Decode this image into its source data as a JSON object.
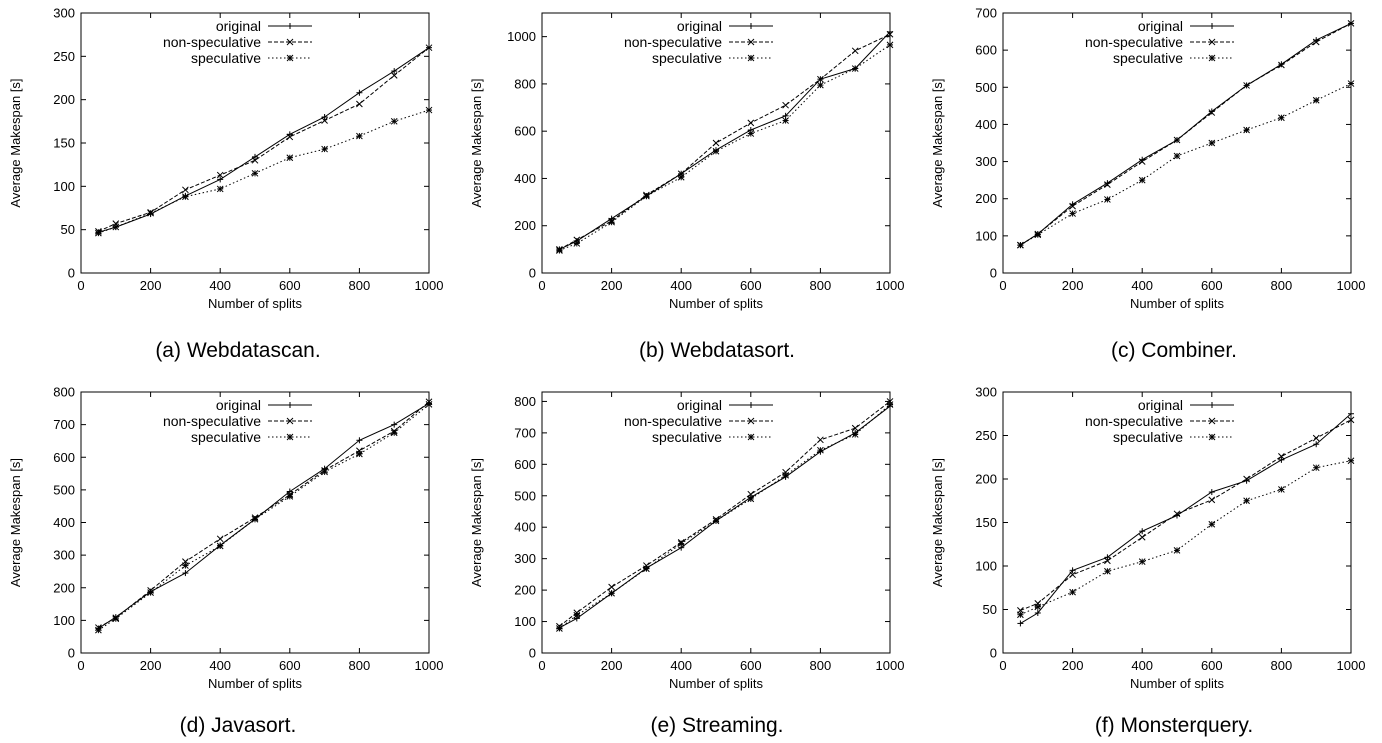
{
  "chart_data": [
    {
      "type": "line",
      "caption": "(a) Webdatascan.",
      "xlabel": "Number of splits",
      "ylabel": "Average Makespan [s]",
      "xlim": [
        0,
        1000
      ],
      "ylim": [
        0,
        300
      ],
      "xticks": [
        0,
        200,
        400,
        600,
        800,
        1000
      ],
      "yticks": [
        0,
        50,
        100,
        150,
        200,
        250,
        300
      ],
      "legend_position": "top-left",
      "x": [
        50,
        100,
        200,
        300,
        400,
        500,
        600,
        700,
        800,
        900,
        1000
      ],
      "series": [
        {
          "name": "original",
          "values": [
            47,
            53,
            68,
            89,
            108,
            134,
            160,
            180,
            208,
            233,
            260
          ]
        },
        {
          "name": "non-speculative",
          "values": [
            48,
            57,
            70,
            96,
            113,
            130,
            157,
            176,
            195,
            228,
            260
          ]
        },
        {
          "name": "speculative",
          "values": [
            46,
            53,
            69,
            88,
            97,
            115,
            133,
            143,
            158,
            175,
            188
          ]
        }
      ]
    },
    {
      "type": "line",
      "caption": "(b) Webdatasort.",
      "xlabel": "Number of splits",
      "ylabel": "Average Makespan [s]",
      "xlim": [
        0,
        1000
      ],
      "ylim": [
        0,
        1100
      ],
      "xticks": [
        0,
        200,
        400,
        600,
        800,
        1000
      ],
      "yticks": [
        0,
        200,
        400,
        600,
        800,
        1000
      ],
      "legend_position": "top-left",
      "x": [
        50,
        100,
        200,
        300,
        400,
        500,
        600,
        700,
        800,
        900,
        1000
      ],
      "series": [
        {
          "name": "original",
          "values": [
            100,
            135,
            230,
            325,
            420,
            520,
            605,
            665,
            820,
            865,
            1020
          ]
        },
        {
          "name": "non-speculative",
          "values": [
            100,
            140,
            220,
            330,
            420,
            550,
            635,
            710,
            820,
            940,
            1010
          ]
        },
        {
          "name": "speculative",
          "values": [
            95,
            125,
            215,
            325,
            405,
            515,
            590,
            645,
            795,
            865,
            965
          ]
        }
      ]
    },
    {
      "type": "line",
      "caption": "(c) Combiner.",
      "xlabel": "Number of splits",
      "ylabel": "Average Makespan [s]",
      "xlim": [
        0,
        1000
      ],
      "ylim": [
        0,
        700
      ],
      "xticks": [
        0,
        200,
        400,
        600,
        800,
        1000
      ],
      "yticks": [
        0,
        100,
        200,
        300,
        400,
        500,
        600,
        700
      ],
      "legend_position": "top-left",
      "x": [
        50,
        100,
        200,
        300,
        400,
        500,
        600,
        700,
        800,
        900,
        1000
      ],
      "series": [
        {
          "name": "original",
          "values": [
            75,
            105,
            185,
            242,
            305,
            358,
            435,
            505,
            562,
            627,
            672
          ]
        },
        {
          "name": "non-speculative",
          "values": [
            75,
            105,
            180,
            238,
            300,
            358,
            432,
            505,
            560,
            622,
            672
          ]
        },
        {
          "name": "speculative",
          "values": [
            75,
            103,
            160,
            198,
            250,
            315,
            350,
            385,
            418,
            465,
            510
          ]
        }
      ]
    },
    {
      "type": "line",
      "caption": "(d) Javasort.",
      "xlabel": "Number of splits",
      "ylabel": "Average Makespan [s]",
      "xlim": [
        0,
        1000
      ],
      "ylim": [
        0,
        800
      ],
      "xticks": [
        0,
        200,
        400,
        600,
        800,
        1000
      ],
      "yticks": [
        0,
        100,
        200,
        300,
        400,
        500,
        600,
        700,
        800
      ],
      "legend_position": "top-left",
      "x": [
        50,
        100,
        200,
        300,
        400,
        500,
        600,
        700,
        800,
        900,
        1000
      ],
      "series": [
        {
          "name": "original",
          "values": [
            75,
            110,
            188,
            245,
            330,
            410,
            495,
            565,
            652,
            700,
            765
          ]
        },
        {
          "name": "non-speculative",
          "values": [
            78,
            108,
            192,
            280,
            350,
            415,
            485,
            560,
            620,
            680,
            770
          ]
        },
        {
          "name": "speculative",
          "values": [
            70,
            105,
            185,
            268,
            328,
            410,
            480,
            555,
            610,
            675,
            762
          ]
        }
      ]
    },
    {
      "type": "line",
      "caption": "(e) Streaming.",
      "xlabel": "Number of splits",
      "ylabel": "Average Makespan [s]",
      "xlim": [
        0,
        1000
      ],
      "ylim": [
        0,
        830
      ],
      "xticks": [
        0,
        200,
        400,
        600,
        800,
        1000
      ],
      "yticks": [
        0,
        100,
        200,
        300,
        400,
        500,
        600,
        700,
        800
      ],
      "legend_position": "top-left",
      "x": [
        50,
        100,
        200,
        300,
        400,
        500,
        600,
        700,
        800,
        900,
        1000
      ],
      "series": [
        {
          "name": "original",
          "values": [
            80,
            110,
            190,
            270,
            335,
            420,
            495,
            560,
            640,
            700,
            785
          ]
        },
        {
          "name": "non-speculative",
          "values": [
            85,
            128,
            210,
            278,
            352,
            425,
            505,
            575,
            678,
            715,
            800
          ]
        },
        {
          "name": "speculative",
          "values": [
            78,
            120,
            190,
            268,
            348,
            420,
            490,
            565,
            645,
            695,
            790
          ]
        }
      ]
    },
    {
      "type": "line",
      "caption": "(f) Monsterquery.",
      "xlabel": "Number of splits",
      "ylabel": "Average Makespan [s]",
      "xlim": [
        0,
        1000
      ],
      "ylim": [
        0,
        300
      ],
      "xticks": [
        0,
        200,
        400,
        600,
        800,
        1000
      ],
      "yticks": [
        0,
        50,
        100,
        150,
        200,
        250,
        300
      ],
      "legend_position": "top-left",
      "x": [
        50,
        100,
        200,
        300,
        400,
        500,
        600,
        700,
        800,
        900,
        1000
      ],
      "series": [
        {
          "name": "original",
          "values": [
            34,
            46,
            95,
            110,
            140,
            158,
            185,
            198,
            222,
            240,
            275
          ]
        },
        {
          "name": "non-speculative",
          "values": [
            49,
            57,
            90,
            106,
            133,
            160,
            176,
            200,
            226,
            247,
            268
          ]
        },
        {
          "name": "speculative",
          "values": [
            44,
            53,
            70,
            94,
            105,
            118,
            148,
            175,
            188,
            213,
            221
          ]
        }
      ]
    }
  ]
}
